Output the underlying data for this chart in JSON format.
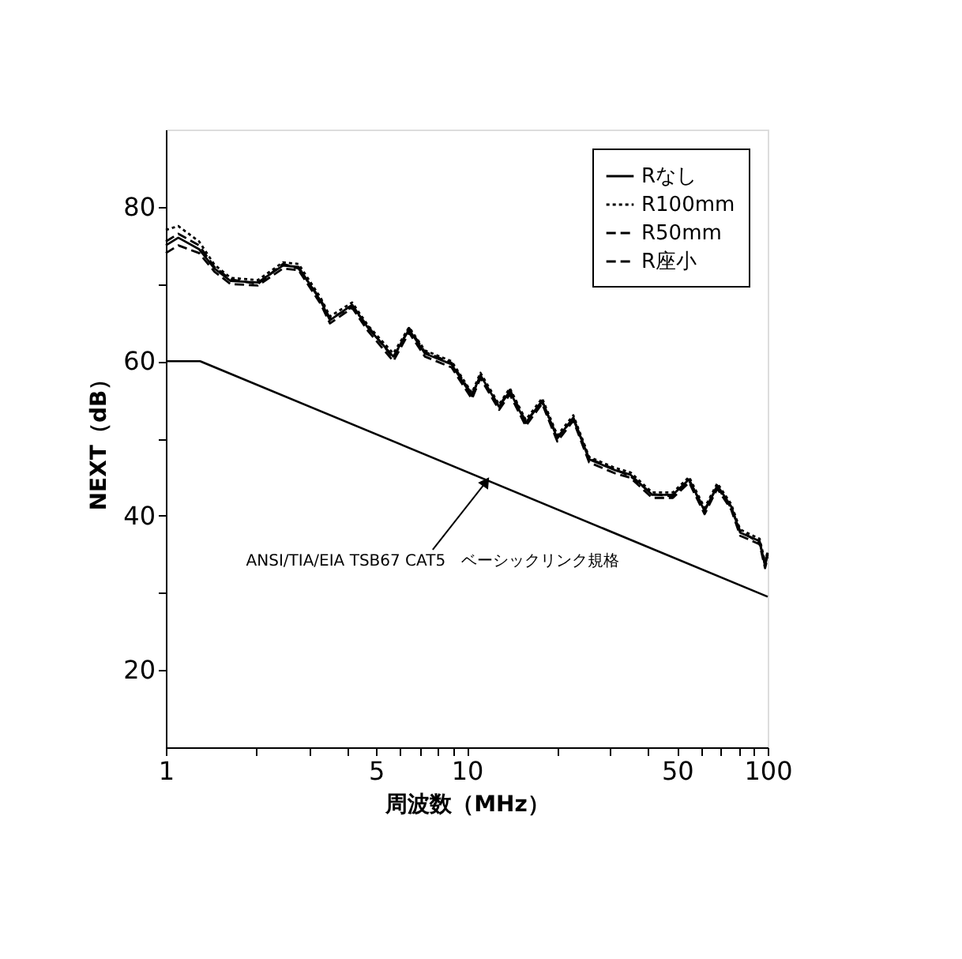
{
  "chart_data": {
    "type": "line",
    "xlabel": "周波数（MHz）",
    "ylabel": "NEXT（dB）",
    "log": "x",
    "xlim": [
      1,
      100
    ],
    "xticks": [
      1,
      {
        "value": 2,
        "label": null
      },
      {
        "value": 3,
        "label": null
      },
      {
        "value": 4,
        "label": null
      },
      5,
      {
        "value": 6,
        "label": null
      },
      {
        "value": 7,
        "label": null
      },
      {
        "value": 8,
        "label": null
      },
      {
        "value": 9,
        "label": null
      },
      10,
      {
        "value": 20,
        "label": null
      },
      {
        "value": 30,
        "label": null
      },
      {
        "value": 40,
        "label": null
      },
      50,
      {
        "value": 60,
        "label": null
      },
      {
        "value": 70,
        "label": null
      },
      {
        "value": 80,
        "label": null
      },
      {
        "value": 90,
        "label": null
      },
      100
    ],
    "ylim": [
      10,
      90
    ],
    "yticks": [
      20,
      {
        "value": 30,
        "label": null
      },
      40,
      {
        "value": 50,
        "label": null
      },
      60,
      {
        "value": 70,
        "label": null
      },
      80
    ],
    "grid": false,
    "legend": "top right",
    "x": [
      1,
      1.1,
      1.29,
      1.45,
      1.64,
      2.02,
      2.45,
      2.76,
      3.27,
      3.51,
      4.16,
      4.7,
      5.7,
      6.43,
      7.26,
      8.9,
      10.4,
      11.1,
      12.8,
      13.9,
      15.7,
      17.8,
      20,
      22.6,
      25.5,
      31,
      35,
      41.3,
      48.4,
      54.8,
      61.7,
      68,
      75.6,
      81,
      94,
      98,
      100
    ],
    "series": [
      {
        "name": "Rなし",
        "color": "#000000",
        "line_style": "solid",
        "values": [
          75,
          76,
          74.5,
          72,
          70.4,
          70.2,
          72.4,
          72.2,
          67.8,
          65.3,
          67.3,
          64.3,
          60.6,
          64.1,
          61,
          59.6,
          55.5,
          58.2,
          54.1,
          56.1,
          52,
          54.9,
          50,
          52.7,
          47.3,
          45.9,
          45.3,
          42.7,
          42.7,
          44.7,
          40.6,
          43.9,
          41.2,
          37.8,
          36.7,
          33.5,
          35
        ]
      },
      {
        "name": "R100mm",
        "color": "#000000",
        "line_style": "dotted",
        "values": [
          77,
          77.5,
          75.5,
          72.5,
          70.8,
          70.5,
          72.8,
          72.6,
          68.2,
          65.8,
          67.6,
          64.6,
          61,
          64.4,
          61.4,
          60,
          55.9,
          58.5,
          54.4,
          56.5,
          52.4,
          55.2,
          50.4,
          53,
          47.6,
          46.2,
          45.6,
          43,
          43,
          45,
          41,
          44.2,
          41.5,
          38.2,
          37,
          34,
          35.4
        ]
      },
      {
        "name": "R50mm",
        "color": "#000000",
        "line_style": "dashed",
        "values": [
          74,
          75,
          74,
          71.6,
          70,
          69.8,
          72,
          71.8,
          67.4,
          64.9,
          66.9,
          63.9,
          60,
          63.7,
          60.6,
          59.2,
          55.1,
          57.8,
          53.7,
          55.7,
          51.6,
          54.5,
          49.6,
          52.3,
          46.9,
          45.5,
          44.9,
          42.3,
          42.3,
          44.3,
          40.2,
          43.5,
          40.8,
          37.4,
          36.3,
          33.2,
          34.6
        ]
      },
      {
        "name": "R座小",
        "color": "#000000",
        "line_style": "dashed",
        "values": [
          75.5,
          76.5,
          75,
          72.2,
          70.6,
          70,
          72.6,
          72,
          68,
          65.5,
          67,
          64.5,
          60.4,
          64.3,
          61.2,
          59.8,
          55.7,
          58,
          54.2,
          56.3,
          52.2,
          54.7,
          50.2,
          52.5,
          47.4,
          46,
          45.1,
          42.8,
          42.5,
          44.5,
          40.8,
          43.7,
          41,
          38,
          36.5,
          33.7,
          35.2
        ]
      },
      {
        "color": "#000000",
        "line_style": "solid",
        "x": [
          1,
          1.3,
          100
        ],
        "values": [
          60,
          60,
          29.5
        ]
      }
    ],
    "annotations": [
      {
        "text": "ANSI/TIA/EIA TSB67 CAT5　ベーシックリンク規格",
        "x": 11.5,
        "y": 44.2
      }
    ]
  }
}
